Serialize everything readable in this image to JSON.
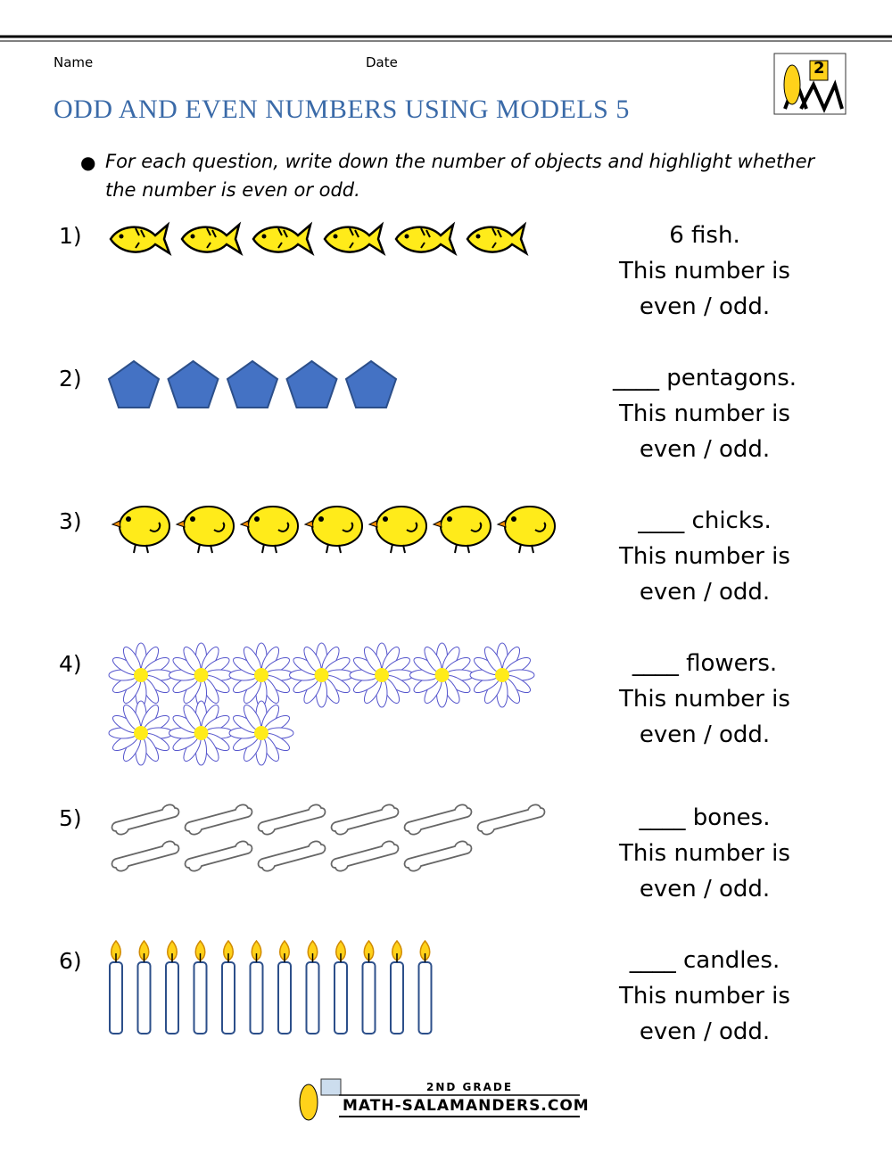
{
  "header": {
    "name_label": "Name",
    "date_label": "Date",
    "title": "ODD AND EVEN NUMBERS USING MODELS 5",
    "logo_grade": "2"
  },
  "instructions": [
    "For each question, write down the number of objects and highlight whether the number is even or odd."
  ],
  "questions": [
    {
      "number": "1)",
      "answer": [
        "6 fish.",
        "This number is",
        "even / odd."
      ]
    },
    {
      "number": "2)",
      "answer": [
        "____ pentagons.",
        "This number is",
        "even / odd."
      ]
    },
    {
      "number": "3)",
      "answer": [
        "____ chicks.",
        "This number is",
        "even / odd."
      ]
    },
    {
      "number": "4)",
      "answer": [
        "____ flowers.",
        "This number is",
        "even / odd."
      ]
    },
    {
      "number": "5)",
      "answer": [
        "____ bones.",
        "This number is",
        "even / odd."
      ]
    },
    {
      "number": "6)",
      "answer": [
        "____ candles.",
        "This number is",
        "even / odd."
      ]
    }
  ],
  "footer": {
    "grade": "2ND GRADE",
    "site": "MATH-SALAMANDERS.COM"
  }
}
